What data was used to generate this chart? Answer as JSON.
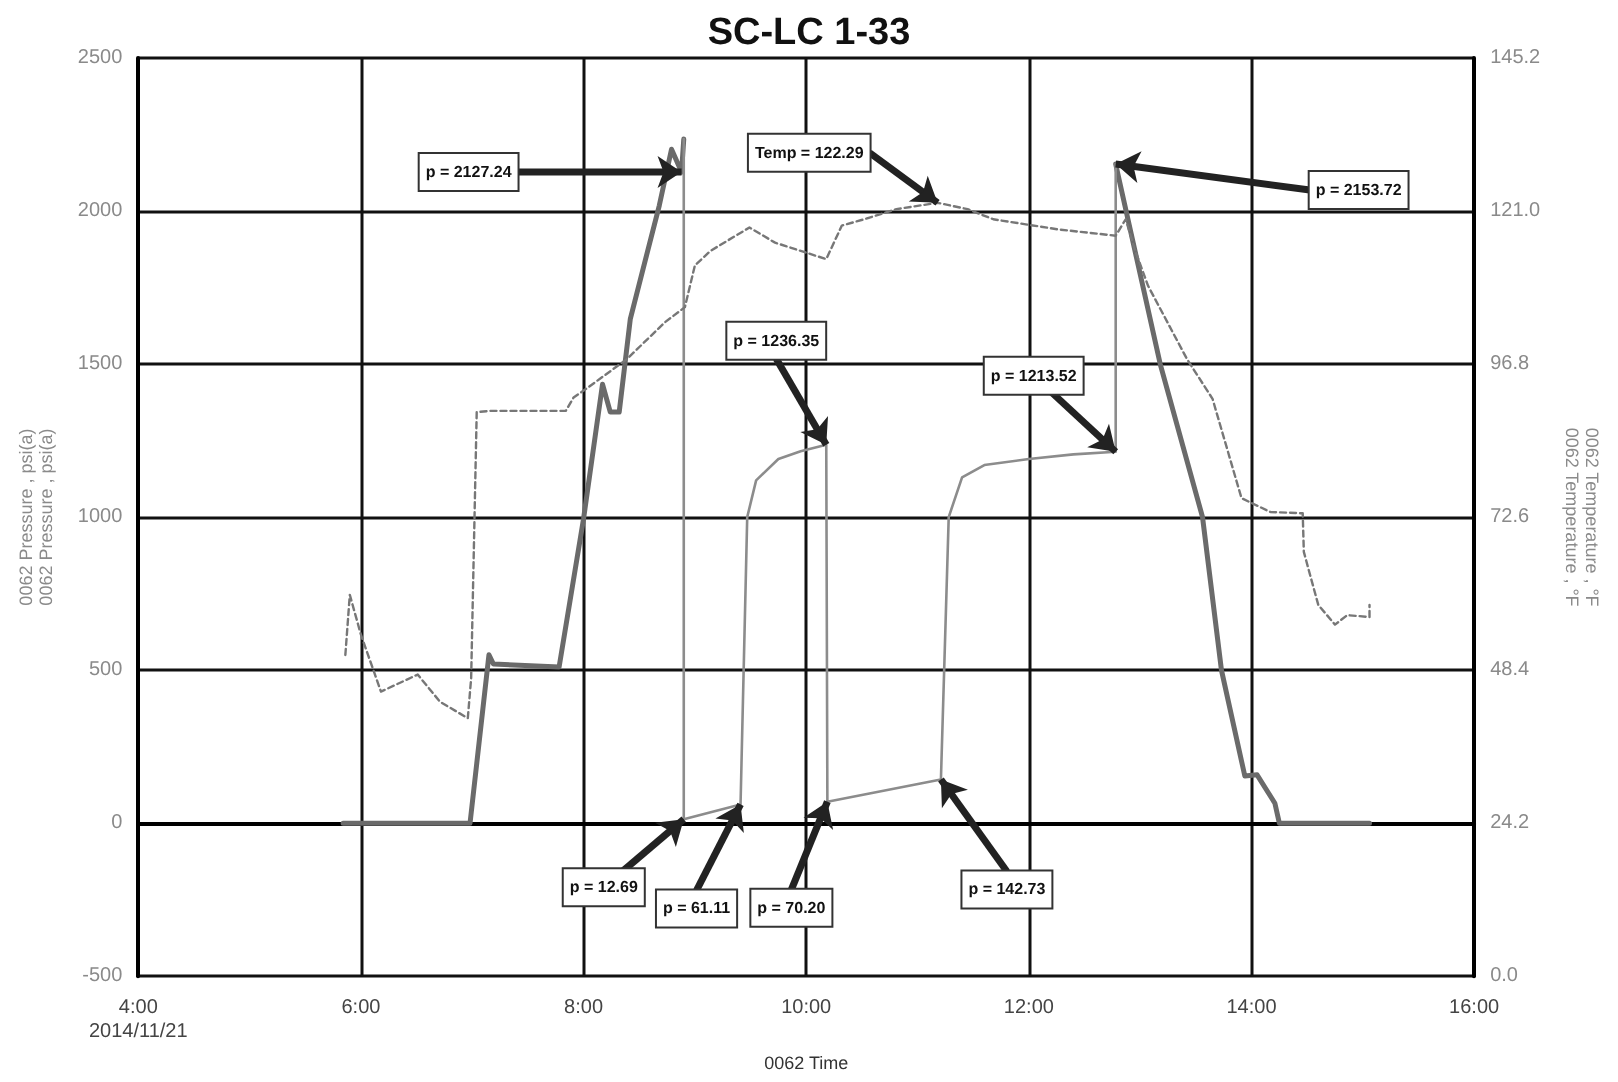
{
  "chart_data": {
    "type": "line",
    "title": "SC-LC 1-33",
    "xlabel": "0062 Time",
    "ylabel": "0062 Pressure , psi(a)\n0062 Pressure , psi(a)",
    "y2label": "0062 Temperature , °F\n0062 Temperature , °F",
    "xlim": [
      4,
      16
    ],
    "xticks": [
      {
        "value": 4,
        "label": "4:00\n2014/11/21"
      },
      {
        "value": 6,
        "label": "6:00"
      },
      {
        "value": 8,
        "label": "8:00"
      },
      {
        "value": 10,
        "label": "10:00"
      },
      {
        "value": 12,
        "label": "12:00"
      },
      {
        "value": 14,
        "label": "14:00"
      },
      {
        "value": 16,
        "label": "16:00"
      }
    ],
    "ylim": [
      -500,
      2500
    ],
    "yticks": [
      -500,
      0,
      500,
      1000,
      1500,
      2000,
      2500
    ],
    "y2lim": [
      0,
      145.2
    ],
    "y2ticks": [
      {
        "value": 0,
        "label": "0.0"
      },
      24.2,
      48.4,
      72.6,
      96.8,
      {
        "value": 121,
        "label": "121.0"
      },
      145.2
    ],
    "grid": true,
    "marker": "none",
    "series": [
      {
        "color": "#6a6a6a",
        "x": [
          5.84,
          6.98,
          7.15,
          7.19,
          7.78,
          8.0,
          8.17,
          8.24,
          8.32,
          8.42,
          8.68,
          8.79,
          8.88,
          8.9,
          10.5,
          12.78,
          12.8,
          13.18,
          13.56,
          13.73,
          13.94,
          14.05,
          14.21,
          14.25,
          15.06
        ],
        "values": [
          0,
          0,
          550,
          520,
          510,
          995,
          1434,
          1343,
          1343,
          1648,
          2018,
          2202,
          2127.24,
          2235,
          null,
          2153.72,
          2120,
          1500,
          1000,
          500,
          154,
          158,
          65,
          0,
          0
        ]
      },
      {
        "color": "#8c8c8c",
        "x": [
          8.9,
          8.9,
          9.41,
          9.47,
          9.55,
          9.75,
          9.95,
          10.18,
          10.19,
          11.21,
          11.28,
          11.4,
          11.6,
          12.0,
          12.4,
          12.78,
          12.78
        ],
        "values": [
          2235,
          12.69,
          61.11,
          1000,
          1120,
          1190,
          1215,
          1236.35,
          70.2,
          142.73,
          1000,
          1130,
          1170,
          1190,
          1205,
          1213.52,
          2153.72
        ]
      },
      {
        "color": "#777777",
        "axis": "y2",
        "line_style": "dashed",
        "x": [
          5.86,
          5.9,
          6.0,
          6.18,
          6.51,
          6.71,
          6.96,
          6.99,
          7.04,
          7.16,
          7.84,
          7.91,
          8.04,
          8.39,
          8.73,
          8.91,
          9.0,
          9.14,
          9.49,
          9.72,
          10.18,
          10.32,
          10.52,
          10.81,
          11.18,
          11.45,
          11.68,
          12.26,
          12.78,
          12.87,
          12.95,
          13.07,
          13.42,
          13.65,
          13.91,
          14.17,
          14.46,
          14.47,
          14.51,
          14.6,
          14.75,
          14.86,
          15.06,
          15.06
        ],
        "values": [
          50.8,
          60.3,
          54,
          45,
          47.7,
          43.4,
          40.8,
          47.1,
          89.2,
          89.4,
          89.4,
          91.5,
          93.1,
          97.6,
          103.4,
          105.8,
          112.4,
          114.7,
          118.4,
          116,
          113.4,
          118.7,
          119.7,
          121.3,
          122.3,
          121.3,
          119.7,
          118.1,
          117.1,
          119.7,
          115,
          109.2,
          97.6,
          91.3,
          75.6,
          73.4,
          73.2,
          67.1,
          64.5,
          58.7,
          55.6,
          57.1,
          56.8,
          58.7
        ]
      }
    ],
    "annotations": [
      {
        "text": "p = 2127.24",
        "x": 8.88,
        "y": 2127.24
      },
      {
        "text": "Temp = 122.29",
        "x": 11.18,
        "y": 2027
      },
      {
        "text": "p = 1236.35",
        "x": 10.18,
        "y": 1236.35
      },
      {
        "text": "p = 1213.52",
        "x": 12.78,
        "y": 1213.52
      },
      {
        "text": "p = 2153.72",
        "x": 12.78,
        "y": 2153.72
      },
      {
        "text": "p = 12.69",
        "x": 8.9,
        "y": 12.69
      },
      {
        "text": "p = 61.11",
        "x": 9.41,
        "y": 61.11
      },
      {
        "text": "p = 70.20",
        "x": 10.19,
        "y": 70.2
      },
      {
        "text": "p = 142.73",
        "x": 11.21,
        "y": 142.73
      }
    ]
  }
}
